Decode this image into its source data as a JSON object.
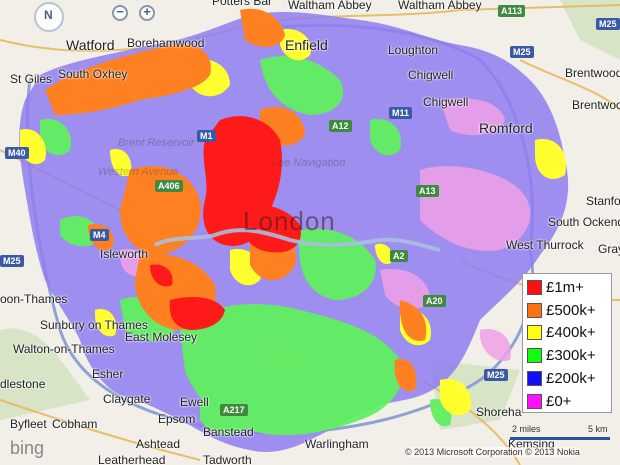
{
  "map": {
    "places": [
      {
        "key": "watford",
        "label": "Watford"
      },
      {
        "key": "borehamwood",
        "label": "Borehamwood"
      },
      {
        "key": "waltham-abbey",
        "label": "Waltham Abbey"
      },
      {
        "key": "waltham-abbey-2",
        "label": "Waltham Abbey"
      },
      {
        "key": "enfield",
        "label": "Enfield"
      },
      {
        "key": "loughton",
        "label": "Loughton"
      },
      {
        "key": "st-giles",
        "label": "St Giles"
      },
      {
        "key": "south-oxhey",
        "label": "South Oxhey"
      },
      {
        "key": "chigwell",
        "label": "Chigwell"
      },
      {
        "key": "chigwell-2",
        "label": "Chigwell"
      },
      {
        "key": "brentwood",
        "label": "Brentwood"
      },
      {
        "key": "brentwood-2",
        "label": "Brentwood"
      },
      {
        "key": "romford",
        "label": "Romford"
      },
      {
        "key": "brent-reservoir",
        "label": "Brent Reservoir"
      },
      {
        "key": "western-avenue",
        "label": "Western Avenue"
      },
      {
        "key": "lee-navigation",
        "label": "Lee Navigation"
      },
      {
        "key": "london",
        "label": "London"
      },
      {
        "key": "isleworth",
        "label": "Isleworth"
      },
      {
        "key": "west-thurrock",
        "label": "West Thurrock"
      },
      {
        "key": "gray",
        "label": "Gray"
      },
      {
        "key": "stanford",
        "label": "Stanfo"
      },
      {
        "key": "south-ockendon",
        "label": "South Ockendon"
      },
      {
        "key": "kingston-thames",
        "label": "oon-Thames"
      },
      {
        "key": "sunbury",
        "label": "Sunbury on Thames"
      },
      {
        "key": "walton",
        "label": "Walton-on-Thames"
      },
      {
        "key": "east-molesey",
        "label": "East Molesey"
      },
      {
        "key": "esher",
        "label": "Esher"
      },
      {
        "key": "addlestone",
        "label": "dlestone"
      },
      {
        "key": "claygate",
        "label": "Claygate"
      },
      {
        "key": "byfleet",
        "label": "Byfleet"
      },
      {
        "key": "cobham",
        "label": "Cobham"
      },
      {
        "key": "epsom",
        "label": "Epsom"
      },
      {
        "key": "ewell",
        "label": "Ewell"
      },
      {
        "key": "banstead",
        "label": "Banstead"
      },
      {
        "key": "ashtead",
        "label": "Ashtead"
      },
      {
        "key": "warlingham",
        "label": "Warlingham"
      },
      {
        "key": "tadworth",
        "label": "Tadworth"
      },
      {
        "key": "leatherhead",
        "label": "Leatherhead"
      },
      {
        "key": "kemsing",
        "label": "Kemsing"
      },
      {
        "key": "shoreham",
        "label": "Shoreha"
      },
      {
        "key": "potters-bar",
        "label": "Potters Bar"
      }
    ],
    "roads": [
      "A113",
      "M25",
      "M25",
      "M11",
      "M40",
      "M1",
      "A406",
      "M4",
      "A13",
      "A20",
      "A217",
      "M25",
      "A2",
      "A12",
      "M25"
    ],
    "nav": {
      "north": "N",
      "zoom_out": "−",
      "zoom_in": "+"
    },
    "bing_logo": "bing",
    "copyright": "© 2013 Microsoft Corporation   © 2013 Nokia",
    "scale": {
      "miles": "2 miles",
      "km": "5 km"
    }
  },
  "legend": {
    "items": [
      {
        "label": "£1m+",
        "color": "#ff1010"
      },
      {
        "label": "£500k+",
        "color": "#ff7010"
      },
      {
        "label": "£400k+",
        "color": "#ffff10"
      },
      {
        "label": "£300k+",
        "color": "#10ff10"
      },
      {
        "label": "£200k+",
        "color": "#1010ff"
      },
      {
        "label": "£0+",
        "color": "#ff10ff"
      }
    ]
  }
}
